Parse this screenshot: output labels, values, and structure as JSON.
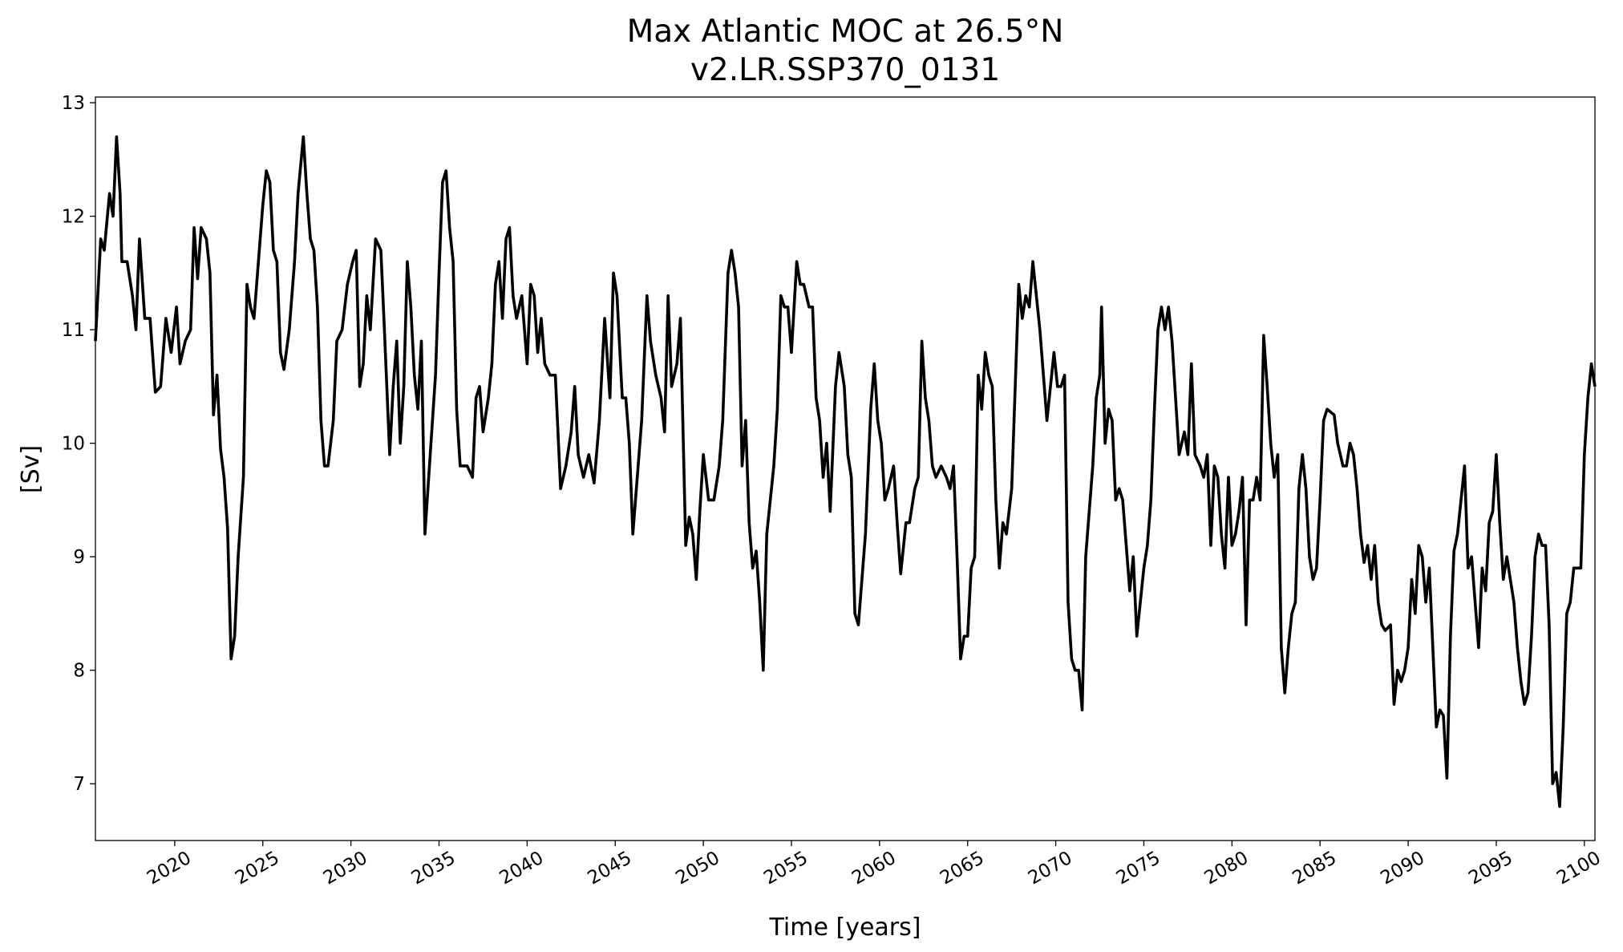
{
  "chart_data": {
    "type": "line",
    "title": "Max Atlantic MOC at 26.5°N",
    "subtitle": "v2.LR.SSP370_0131",
    "x_label": "Time [years]",
    "y_label": "[Sv]",
    "xlim": [
      2015.5,
      2100.6
    ],
    "ylim": [
      6.5,
      13.05
    ],
    "xticks": [
      2020,
      2025,
      2030,
      2035,
      2040,
      2045,
      2050,
      2055,
      2060,
      2065,
      2070,
      2075,
      2080,
      2085,
      2090,
      2095,
      2100
    ],
    "yticks": [
      7,
      8,
      9,
      10,
      11,
      12,
      13
    ],
    "series": [
      {
        "name": "MOC",
        "color": "#000000",
        "x": [
          2015.5,
          2015.8,
          2016.0,
          2016.3,
          2016.5,
          2016.7,
          2016.9,
          2017.0,
          2017.3,
          2017.6,
          2017.8,
          2018.0,
          2018.3,
          2018.6,
          2018.9,
          2019.2,
          2019.5,
          2019.8,
          2020.1,
          2020.3,
          2020.6,
          2020.9,
          2021.1,
          2021.3,
          2021.5,
          2021.8,
          2022.0,
          2022.2,
          2022.4,
          2022.6,
          2022.8,
          2023.0,
          2023.2,
          2023.4,
          2023.6,
          2023.9,
          2024.1,
          2024.3,
          2024.5,
          2024.7,
          2025.0,
          2025.2,
          2025.4,
          2025.6,
          2025.8,
          2026.0,
          2026.2,
          2026.5,
          2026.8,
          2027.0,
          2027.3,
          2027.5,
          2027.7,
          2027.9,
          2028.1,
          2028.3,
          2028.5,
          2028.7,
          2029.0,
          2029.2,
          2029.5,
          2029.8,
          2030.1,
          2030.3,
          2030.5,
          2030.7,
          2030.9,
          2031.1,
          2031.4,
          2031.7,
          2031.9,
          2032.2,
          2032.4,
          2032.6,
          2032.8,
          2033.0,
          2033.2,
          2033.4,
          2033.6,
          2033.8,
          2034.0,
          2034.2,
          2034.5,
          2034.8,
          2035.0,
          2035.2,
          2035.4,
          2035.6,
          2035.8,
          2036.0,
          2036.2,
          2036.4,
          2036.6,
          2036.9,
          2037.1,
          2037.3,
          2037.5,
          2037.8,
          2038.0,
          2038.2,
          2038.4,
          2038.6,
          2038.8,
          2039.0,
          2039.2,
          2039.4,
          2039.7,
          2040.0,
          2040.2,
          2040.4,
          2040.6,
          2040.8,
          2041.0,
          2041.3,
          2041.6,
          2041.9,
          2042.2,
          2042.5,
          2042.7,
          2042.9,
          2043.2,
          2043.5,
          2043.8,
          2044.1,
          2044.4,
          2044.7,
          2044.9,
          2045.1,
          2045.4,
          2045.6,
          2045.8,
          2046.0,
          2046.3,
          2046.5,
          2046.8,
          2047.0,
          2047.3,
          2047.6,
          2047.8,
          2048.0,
          2048.2,
          2048.5,
          2048.7,
          2049.0,
          2049.2,
          2049.4,
          2049.6,
          2049.8,
          2050.0,
          2050.3,
          2050.6,
          2050.9,
          2051.1,
          2051.4,
          2051.6,
          2051.8,
          2052.0,
          2052.2,
          2052.4,
          2052.6,
          2052.8,
          2053.0,
          2053.2,
          2053.4,
          2053.6,
          2053.8,
          2054.0,
          2054.2,
          2054.4,
          2054.6,
          2054.8,
          2055.0,
          2055.3,
          2055.5,
          2055.7,
          2056.0,
          2056.2,
          2056.4,
          2056.6,
          2056.8,
          2057.0,
          2057.2,
          2057.5,
          2057.7,
          2058.0,
          2058.2,
          2058.4,
          2058.6,
          2058.8,
          2059.0,
          2059.2,
          2059.5,
          2059.7,
          2059.9,
          2060.1,
          2060.3,
          2060.5,
          2060.8,
          2061.0,
          2061.2,
          2061.5,
          2061.7,
          2062.0,
          2062.2,
          2062.4,
          2062.6,
          2062.8,
          2063.0,
          2063.2,
          2063.5,
          2063.8,
          2064.0,
          2064.2,
          2064.4,
          2064.6,
          2064.8,
          2065.0,
          2065.2,
          2065.4,
          2065.6,
          2065.8,
          2066.0,
          2066.2,
          2066.4,
          2066.6,
          2066.8,
          2067.0,
          2067.2,
          2067.5,
          2067.7,
          2067.9,
          2068.1,
          2068.3,
          2068.5,
          2068.7,
          2068.9,
          2069.1,
          2069.3,
          2069.5,
          2069.7,
          2069.9,
          2070.1,
          2070.3,
          2070.5,
          2070.7,
          2070.9,
          2071.1,
          2071.3,
          2071.5,
          2071.7,
          2071.9,
          2072.1,
          2072.3,
          2072.5,
          2072.6,
          2072.8,
          2073.0,
          2073.2,
          2073.4,
          2073.6,
          2073.8,
          2074.0,
          2074.2,
          2074.4,
          2074.6,
          2074.8,
          2075.0,
          2075.2,
          2075.4,
          2075.6,
          2075.8,
          2076.0,
          2076.2,
          2076.4,
          2076.6,
          2076.8,
          2077.0,
          2077.3,
          2077.5,
          2077.7,
          2077.9,
          2078.2,
          2078.4,
          2078.6,
          2078.8,
          2079.0,
          2079.2,
          2079.4,
          2079.6,
          2079.8,
          2080.0,
          2080.2,
          2080.4,
          2080.6,
          2080.8,
          2081.0,
          2081.2,
          2081.4,
          2081.6,
          2081.8,
          2082.0,
          2082.2,
          2082.4,
          2082.6,
          2082.8,
          2083.0,
          2083.2,
          2083.4,
          2083.6,
          2083.8,
          2084.0,
          2084.2,
          2084.4,
          2084.6,
          2084.8,
          2085.0,
          2085.2,
          2085.4,
          2085.8,
          2086.0,
          2086.3,
          2086.5,
          2086.7,
          2086.9,
          2087.1,
          2087.3,
          2087.5,
          2087.7,
          2087.9,
          2088.1,
          2088.3,
          2088.5,
          2088.7,
          2089.0,
          2089.2,
          2089.4,
          2089.6,
          2089.8,
          2090.0,
          2090.2,
          2090.4,
          2090.6,
          2090.8,
          2091.0,
          2091.2,
          2091.4,
          2091.6,
          2091.8,
          2092.0,
          2092.2,
          2092.4,
          2092.6,
          2092.8,
          2093.0,
          2093.2,
          2093.4,
          2093.6,
          2093.8,
          2094.0,
          2094.2,
          2094.4,
          2094.6,
          2094.8,
          2095.0,
          2095.2,
          2095.4,
          2095.6,
          2095.8,
          2096.0,
          2096.2,
          2096.4,
          2096.6,
          2096.8,
          2097.0,
          2097.2,
          2097.4,
          2097.6,
          2097.8,
          2098.0,
          2098.2,
          2098.4,
          2098.6,
          2098.8,
          2099.0,
          2099.2,
          2099.4,
          2099.6,
          2099.8,
          2100.0,
          2100.2,
          2100.4,
          2100.6
        ],
        "values": [
          10.9,
          11.8,
          11.7,
          12.2,
          12.0,
          12.7,
          12.2,
          11.6,
          11.6,
          11.3,
          11.0,
          11.8,
          11.1,
          11.1,
          10.45,
          10.5,
          11.1,
          10.8,
          11.2,
          10.7,
          10.9,
          11.0,
          11.9,
          11.45,
          11.9,
          11.8,
          11.5,
          10.25,
          10.6,
          9.95,
          9.7,
          9.25,
          8.1,
          8.3,
          9.0,
          9.7,
          11.4,
          11.2,
          11.1,
          11.5,
          12.1,
          12.4,
          12.3,
          11.7,
          11.6,
          10.8,
          10.65,
          11.0,
          11.6,
          12.2,
          12.7,
          12.2,
          11.8,
          11.7,
          11.2,
          10.2,
          9.8,
          9.8,
          10.2,
          10.9,
          11.0,
          11.4,
          11.6,
          11.7,
          10.5,
          10.7,
          11.3,
          11.0,
          11.8,
          11.7,
          11.0,
          9.9,
          10.5,
          10.9,
          10.0,
          10.5,
          11.6,
          11.2,
          10.6,
          10.3,
          10.9,
          9.2,
          9.9,
          10.6,
          11.5,
          12.3,
          12.4,
          11.9,
          11.6,
          10.3,
          9.8,
          9.8,
          9.8,
          9.7,
          10.4,
          10.5,
          10.1,
          10.4,
          10.7,
          11.4,
          11.6,
          11.1,
          11.8,
          11.9,
          11.3,
          11.1,
          11.3,
          10.7,
          11.4,
          11.3,
          10.8,
          11.1,
          10.7,
          10.6,
          10.6,
          9.6,
          9.8,
          10.1,
          10.5,
          9.9,
          9.7,
          9.9,
          9.65,
          10.2,
          11.1,
          10.4,
          11.5,
          11.3,
          10.4,
          10.4,
          10.0,
          9.2,
          9.8,
          10.2,
          11.3,
          10.9,
          10.6,
          10.4,
          10.1,
          11.3,
          10.5,
          10.7,
          11.1,
          9.1,
          9.35,
          9.2,
          8.8,
          9.4,
          9.9,
          9.5,
          9.5,
          9.8,
          10.2,
          11.5,
          11.7,
          11.5,
          11.2,
          9.8,
          10.2,
          9.3,
          8.9,
          9.05,
          8.6,
          8.0,
          9.2,
          9.5,
          9.8,
          10.3,
          11.3,
          11.2,
          11.2,
          10.8,
          11.6,
          11.4,
          11.4,
          11.2,
          11.2,
          10.4,
          10.2,
          9.7,
          10.0,
          9.4,
          10.5,
          10.8,
          10.5,
          9.9,
          9.7,
          8.5,
          8.4,
          8.8,
          9.2,
          10.3,
          10.7,
          10.2,
          10.0,
          9.5,
          9.6,
          9.8,
          9.3,
          8.85,
          9.3,
          9.3,
          9.6,
          9.7,
          10.9,
          10.4,
          10.2,
          9.8,
          9.7,
          9.8,
          9.7,
          9.6,
          9.8,
          9.0,
          8.1,
          8.3,
          8.3,
          8.9,
          9.0,
          10.6,
          10.3,
          10.8,
          10.6,
          10.5,
          9.5,
          8.9,
          9.3,
          9.2,
          9.6,
          10.5,
          11.4,
          11.1,
          11.3,
          11.2,
          11.6,
          11.3,
          11.0,
          10.6,
          10.2,
          10.5,
          10.8,
          10.5,
          10.5,
          10.6,
          8.6,
          8.1,
          8.0,
          8.0,
          7.65,
          9.0,
          9.4,
          9.8,
          10.4,
          10.6,
          11.2,
          10.0,
          10.3,
          10.2,
          9.5,
          9.6,
          9.5,
          9.1,
          8.7,
          9.0,
          8.3,
          8.6,
          8.9,
          9.1,
          9.5,
          10.3,
          11.0,
          11.2,
          11.0,
          11.2,
          10.9,
          10.4,
          9.9,
          10.1,
          9.9,
          10.7,
          9.9,
          9.8,
          9.7,
          9.9,
          9.1,
          9.8,
          9.7,
          9.2,
          8.9,
          9.7,
          9.1,
          9.2,
          9.4,
          9.7,
          8.4,
          9.5,
          9.5,
          9.7,
          9.5,
          10.95,
          10.5,
          10.0,
          9.7,
          9.9,
          8.2,
          7.8,
          8.2,
          8.5,
          8.6,
          9.6,
          9.9,
          9.6,
          9.0,
          8.8,
          8.9,
          9.5,
          10.2,
          10.3,
          10.25,
          10.0,
          9.8,
          9.8,
          10.0,
          9.9,
          9.6,
          9.2,
          8.95,
          9.1,
          8.8,
          9.1,
          8.6,
          8.4,
          8.35,
          8.4,
          7.7,
          8.0,
          7.9,
          8.0,
          8.2,
          8.8,
          8.5,
          9.1,
          9.0,
          8.6,
          8.9,
          8.2,
          7.5,
          7.65,
          7.6,
          7.05,
          8.3,
          9.05,
          9.2,
          9.5,
          9.8,
          8.9,
          9.0,
          8.6,
          8.2,
          8.9,
          8.7,
          9.3,
          9.4,
          9.9,
          9.3,
          8.8,
          9.0,
          8.8,
          8.6,
          8.2,
          7.9,
          7.7,
          7.8,
          8.3,
          9.0,
          9.2,
          9.1,
          9.1,
          8.4,
          7.0,
          7.1,
          6.8,
          7.5,
          8.5,
          8.6,
          8.9,
          8.9,
          8.9,
          9.9,
          10.4,
          10.7,
          10.5
        ]
      }
    ]
  }
}
